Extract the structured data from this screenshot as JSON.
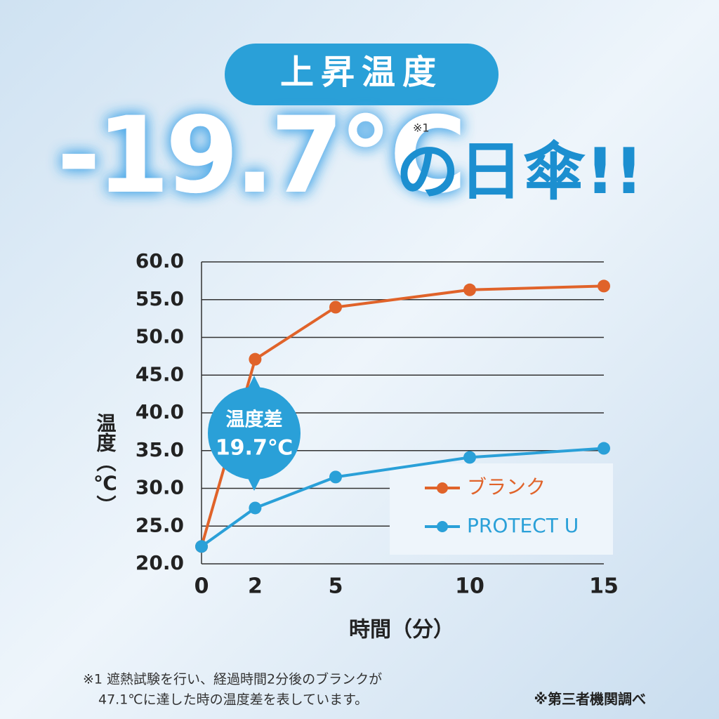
{
  "chart_data": {
    "type": "line",
    "badge": "上昇温度",
    "headline_value": "-19.7℃",
    "headline_note": "※1",
    "headline_suffix": "の日傘!!",
    "ylabel": "温度（℃）",
    "xlabel": "時間（分）",
    "x": [
      0,
      2,
      5,
      10,
      15
    ],
    "xlim": [
      0,
      15
    ],
    "xticks": [
      0,
      2,
      5,
      10,
      15
    ],
    "ylim": [
      20,
      60
    ],
    "yticks": [
      {
        "value": 20,
        "label": "20.0"
      },
      {
        "value": 25,
        "label": "25.0"
      },
      {
        "value": 30,
        "label": "30.0"
      },
      {
        "value": 35,
        "label": "35.0"
      },
      {
        "value": 40,
        "label": "40.0"
      },
      {
        "value": 45,
        "label": "45.0"
      },
      {
        "value": 50,
        "label": "50.0"
      },
      {
        "value": 55,
        "label": "55.0"
      },
      {
        "value": 60,
        "label": "60.0"
      }
    ],
    "grid": true,
    "legend": "lower-right",
    "series": [
      {
        "name": "ブランク",
        "color": "#e0632a",
        "values": [
          22.3,
          47.1,
          54.0,
          56.3,
          56.8
        ]
      },
      {
        "name": "PROTECT U",
        "color": "#2aa0d8",
        "values": [
          22.3,
          27.4,
          31.5,
          34.1,
          35.3
        ]
      }
    ],
    "annotation": {
      "title": "温度差",
      "value": "19.7℃"
    },
    "footnote": [
      "※1 遮熱試験を行い、経過時間2分後のブランクが",
      "47.1℃に達した時の温度差を表しています。"
    ],
    "source": "※第三者機関調べ"
  }
}
